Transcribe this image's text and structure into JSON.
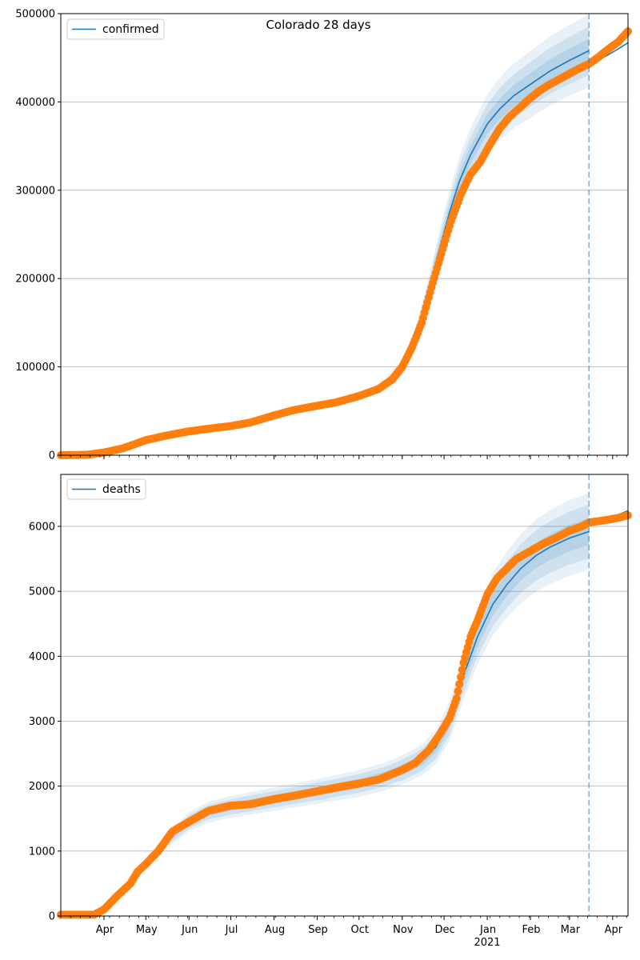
{
  "figure": {
    "title": "Colorado 28 days"
  },
  "x_axis": {
    "month_labels": [
      "Apr",
      "May",
      "Jun",
      "Jul",
      "Aug",
      "Sep",
      "Oct",
      "Nov",
      "Dec",
      "Jan",
      "Feb",
      "Mar",
      "Apr"
    ],
    "year_label": "2021",
    "forecast_date": "2021-03-15"
  },
  "colors": {
    "model": "#1f77b4",
    "observed": "#ff7f0e",
    "grid": "#b0b0b0",
    "forecast_line": "#1f77b4"
  },
  "chart_data": [
    {
      "type": "line",
      "legend": "confirmed",
      "title": "Colorado 28 days",
      "ylim": [
        0,
        500000
      ],
      "yticks": [
        0,
        100000,
        200000,
        300000,
        400000,
        500000
      ],
      "ytick_labels": [
        "0",
        "100000",
        "200000",
        "300000",
        "400000",
        "500000"
      ],
      "xlim": [
        "2020-03-01",
        "2021-04-12"
      ],
      "grid": "horizontal",
      "legend_position": "top-left",
      "model": {
        "x": [
          "2020-10-20",
          "2020-11-01",
          "2020-11-10",
          "2020-11-20",
          "2020-11-28",
          "2020-12-05",
          "2020-12-12",
          "2020-12-20",
          "2021-01-01",
          "2021-01-10",
          "2021-01-20",
          "2021-02-01",
          "2021-02-15",
          "2021-03-01",
          "2021-03-15"
        ],
        "y": [
          80000,
          100000,
          130000,
          185000,
          235000,
          275000,
          310000,
          340000,
          375000,
          392000,
          407000,
          420000,
          435000,
          447000,
          458000
        ]
      },
      "model_band_spread": [
        0,
        0.03,
        0.06,
        0.09
      ],
      "projection": {
        "x": [
          "2021-03-15",
          "2021-03-25",
          "2021-04-05",
          "2021-04-12"
        ],
        "y": [
          442000,
          450000,
          460000,
          467000
        ]
      },
      "observed": {
        "x": [
          "2020-03-01",
          "2020-03-20",
          "2020-04-01",
          "2020-04-15",
          "2020-05-01",
          "2020-05-15",
          "2020-06-01",
          "2020-06-15",
          "2020-07-01",
          "2020-07-15",
          "2020-08-01",
          "2020-08-15",
          "2020-09-01",
          "2020-09-15",
          "2020-10-01",
          "2020-10-15",
          "2020-10-25",
          "2020-11-01",
          "2020-11-08",
          "2020-11-15",
          "2020-11-22",
          "2020-11-29",
          "2020-12-06",
          "2020-12-13",
          "2020-12-20",
          "2020-12-27",
          "2021-01-03",
          "2021-01-10",
          "2021-01-17",
          "2021-01-24",
          "2021-01-31",
          "2021-02-07",
          "2021-02-14",
          "2021-02-21",
          "2021-02-28",
          "2021-03-07",
          "2021-03-15",
          "2021-03-22",
          "2021-03-29",
          "2021-04-05",
          "2021-04-12"
        ],
        "y": [
          0,
          500,
          3000,
          8000,
          17000,
          22000,
          27000,
          30000,
          33000,
          37000,
          45000,
          51000,
          56000,
          60000,
          67000,
          75000,
          86000,
          100000,
          122000,
          150000,
          190000,
          228000,
          265000,
          295000,
          318000,
          332000,
          352000,
          370000,
          383000,
          393000,
          403000,
          412000,
          419000,
          425000,
          431000,
          437000,
          443000,
          451000,
          460000,
          468000,
          480000
        ]
      }
    },
    {
      "type": "line",
      "legend": "deaths",
      "ylim": [
        0,
        6800
      ],
      "yticks": [
        0,
        1000,
        2000,
        3000,
        4000,
        5000,
        6000
      ],
      "ytick_labels": [
        "0",
        "1000",
        "2000",
        "3000",
        "4000",
        "5000",
        "6000"
      ],
      "xlim": [
        "2020-03-01",
        "2021-04-12"
      ],
      "grid": "horizontal",
      "legend_position": "top-left",
      "model": {
        "x": [
          "2020-03-15",
          "2020-04-01",
          "2020-04-15",
          "2020-05-01",
          "2020-05-15",
          "2020-06-01",
          "2020-06-15",
          "2020-07-01",
          "2020-08-01",
          "2020-09-01",
          "2020-10-01",
          "2020-10-20",
          "2020-11-01",
          "2020-11-15",
          "2020-11-25",
          "2020-12-05",
          "2020-12-15",
          "2020-12-25",
          "2021-01-05",
          "2021-01-15",
          "2021-01-25",
          "2021-02-05",
          "2021-02-15",
          "2021-03-01",
          "2021-03-15"
        ],
        "y": [
          0,
          100,
          350,
          800,
          1150,
          1450,
          1600,
          1680,
          1800,
          1920,
          2040,
          2150,
          2250,
          2400,
          2600,
          3000,
          3700,
          4300,
          4800,
          5100,
          5350,
          5550,
          5680,
          5820,
          5920
        ]
      },
      "model_band_spread": [
        0,
        0.035,
        0.07,
        0.1
      ],
      "projection": {
        "x": [
          "2021-03-15",
          "2021-03-25",
          "2021-04-05",
          "2021-04-12"
        ],
        "y": [
          6050,
          6100,
          6180,
          6240
        ]
      },
      "observed": {
        "x": [
          "2020-03-01",
          "2020-03-25",
          "2020-04-01",
          "2020-04-10",
          "2020-04-20",
          "2020-04-25",
          "2020-05-01",
          "2020-05-10",
          "2020-05-20",
          "2020-06-01",
          "2020-06-15",
          "2020-07-01",
          "2020-07-15",
          "2020-08-01",
          "2020-08-15",
          "2020-09-01",
          "2020-09-15",
          "2020-10-01",
          "2020-10-15",
          "2020-11-01",
          "2020-11-10",
          "2020-11-20",
          "2020-11-28",
          "2020-12-05",
          "2020-12-10",
          "2020-12-15",
          "2020-12-20",
          "2020-12-25",
          "2021-01-01",
          "2021-01-08",
          "2021-01-15",
          "2021-01-22",
          "2021-02-01",
          "2021-02-10",
          "2021-02-20",
          "2021-03-01",
          "2021-03-10",
          "2021-03-15",
          "2021-03-25",
          "2021-04-05",
          "2021-04-12"
        ],
        "y": [
          20,
          20,
          100,
          300,
          500,
          680,
          800,
          1000,
          1300,
          1450,
          1620,
          1700,
          1720,
          1800,
          1850,
          1920,
          1980,
          2040,
          2100,
          2250,
          2350,
          2550,
          2800,
          3050,
          3350,
          3900,
          4300,
          4550,
          4950,
          5200,
          5350,
          5500,
          5620,
          5730,
          5830,
          5930,
          6000,
          6060,
          6090,
          6130,
          6170
        ]
      }
    }
  ]
}
